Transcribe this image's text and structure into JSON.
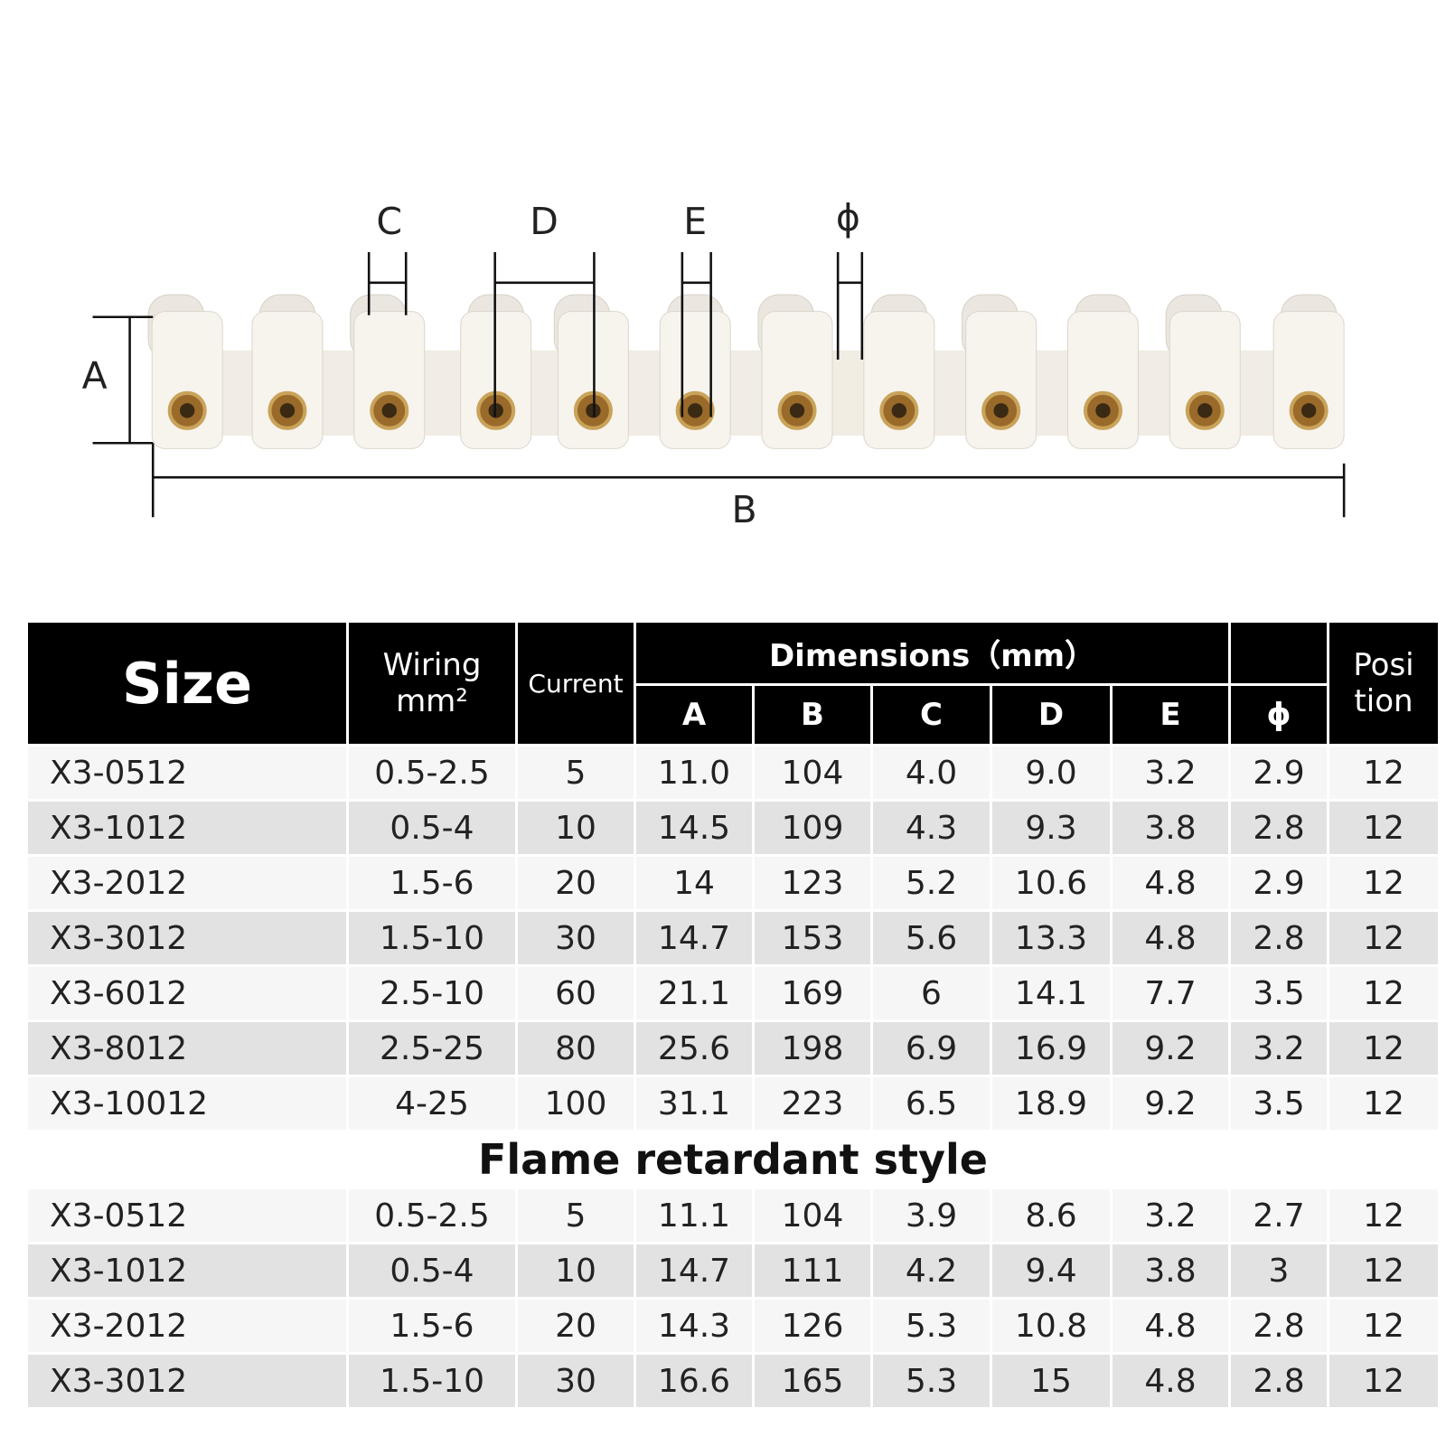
{
  "diagram": {
    "labels": {
      "a": "A",
      "b": "B",
      "c": "C",
      "d": "D",
      "e": "E",
      "phi": "ϕ"
    }
  },
  "header": {
    "size": "Size",
    "wiring": "Wiring",
    "wiring_unit": "mm²",
    "current": "Current",
    "dimensions": "Dimensions（mm）",
    "columns": [
      "A",
      "B",
      "C",
      "D",
      "E",
      "ϕ"
    ],
    "position_lines": [
      "Posi",
      "tion"
    ]
  },
  "table": {
    "rows": [
      [
        "X3-0512",
        "0.5-2.5",
        "5",
        "11.0",
        "104",
        "4.0",
        "9.0",
        "3.2",
        "2.9",
        "12"
      ],
      [
        "X3-1012",
        "0.5-4",
        "10",
        "14.5",
        "109",
        "4.3",
        "9.3",
        "3.8",
        "2.8",
        "12"
      ],
      [
        "X3-2012",
        "1.5-6",
        "20",
        "14",
        "123",
        "5.2",
        "10.6",
        "4.8",
        "2.9",
        "12"
      ],
      [
        "X3-3012",
        "1.5-10",
        "30",
        "14.7",
        "153",
        "5.6",
        "13.3",
        "4.8",
        "2.8",
        "12"
      ],
      [
        "X3-6012",
        "2.5-10",
        "60",
        "21.1",
        "169",
        "6",
        "14.1",
        "7.7",
        "3.5",
        "12"
      ],
      [
        "X3-8012",
        "2.5-25",
        "80",
        "25.6",
        "198",
        "6.9",
        "16.9",
        "9.2",
        "3.2",
        "12"
      ],
      [
        "X3-10012",
        "4-25",
        "100",
        "31.1",
        "223",
        "6.5",
        "18.9",
        "9.2",
        "3.5",
        "12"
      ]
    ]
  },
  "flame": {
    "title": "Flame retardant style",
    "rows": [
      [
        "X3-0512",
        "0.5-2.5",
        "5",
        "11.1",
        "104",
        "3.9",
        "8.6",
        "3.2",
        "2.7",
        "12"
      ],
      [
        "X3-1012",
        "0.5-4",
        "10",
        "14.7",
        "111",
        "4.2",
        "9.4",
        "3.8",
        "3",
        "12"
      ],
      [
        "X3-2012",
        "1.5-6",
        "20",
        "14.3",
        "126",
        "5.3",
        "10.8",
        "4.8",
        "2.8",
        "12"
      ],
      [
        "X3-3012",
        "1.5-10",
        "30",
        "16.6",
        "165",
        "5.3",
        "15",
        "4.8",
        "2.8",
        "12"
      ]
    ]
  }
}
